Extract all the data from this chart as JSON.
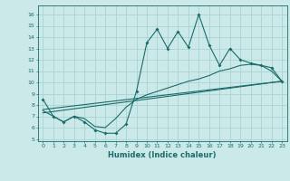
{
  "title": "",
  "xlabel": "Humidex (Indice chaleur)",
  "background_color": "#cce9e9",
  "grid_color": "#a8d4d4",
  "line_color": "#1a6b6b",
  "xlim": [
    -0.5,
    23.5
  ],
  "ylim": [
    4.8,
    16.8
  ],
  "xticks": [
    0,
    1,
    2,
    3,
    4,
    5,
    6,
    7,
    8,
    9,
    10,
    11,
    12,
    13,
    14,
    15,
    16,
    17,
    18,
    19,
    20,
    21,
    22,
    23
  ],
  "yticks": [
    5,
    6,
    7,
    8,
    9,
    10,
    11,
    12,
    13,
    14,
    15,
    16
  ],
  "main_line_x": [
    0,
    1,
    2,
    3,
    4,
    5,
    6,
    7,
    8,
    9,
    10,
    11,
    12,
    13,
    14,
    15,
    16,
    17,
    18,
    19,
    20,
    21,
    22,
    23
  ],
  "main_line_y": [
    8.5,
    7.0,
    6.5,
    7.0,
    6.5,
    5.8,
    5.5,
    5.5,
    6.3,
    9.2,
    13.5,
    14.7,
    13.0,
    14.5,
    13.1,
    16.0,
    13.3,
    11.5,
    13.0,
    12.0,
    11.7,
    11.5,
    11.3,
    10.1
  ],
  "line2_x": [
    0,
    1,
    2,
    3,
    4,
    5,
    6,
    7,
    8,
    9,
    10,
    11,
    12,
    13,
    14,
    15,
    16,
    17,
    18,
    19,
    20,
    21,
    22,
    23
  ],
  "line2_y": [
    7.5,
    7.0,
    6.5,
    7.0,
    6.8,
    6.1,
    6.0,
    6.8,
    7.8,
    8.5,
    8.9,
    9.2,
    9.5,
    9.8,
    10.1,
    10.3,
    10.6,
    11.0,
    11.2,
    11.5,
    11.6,
    11.5,
    11.0,
    10.1
  ],
  "line3_x": [
    0,
    23
  ],
  "line3_y": [
    7.3,
    10.1
  ],
  "line4_x": [
    0,
    23
  ],
  "line4_y": [
    7.6,
    10.1
  ]
}
